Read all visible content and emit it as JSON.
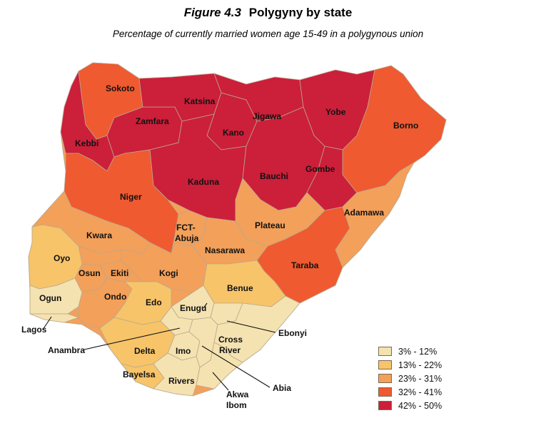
{
  "figure": {
    "number": "Figure 4.3",
    "title": "Polygyny by state",
    "subtitle": "Percentage of currently married women age 15-49 in a polygynous union"
  },
  "legend": [
    {
      "label": "3% - 12%",
      "color": "#f4e2b0"
    },
    {
      "label": "13% - 22%",
      "color": "#f7c46a"
    },
    {
      "label": "23% - 31%",
      "color": "#f3a05a"
    },
    {
      "label": "32% - 41%",
      "color": "#ef5a30"
    },
    {
      "label": "42% - 50%",
      "color": "#cc1f3a"
    }
  ],
  "states": [
    {
      "name": "Sokoto",
      "class": 5
    },
    {
      "name": "Kebbi",
      "class": 5
    },
    {
      "name": "Zamfara",
      "class": 5
    },
    {
      "name": "Katsina",
      "class": 5
    },
    {
      "name": "Kano",
      "class": 5
    },
    {
      "name": "Jigawa",
      "class": 5
    },
    {
      "name": "Yobe",
      "class": 5
    },
    {
      "name": "Borno",
      "class": 4
    },
    {
      "name": "Kaduna",
      "class": 5
    },
    {
      "name": "Bauchi",
      "class": 5
    },
    {
      "name": "Gombe",
      "class": 5
    },
    {
      "name": "Niger",
      "class": 4
    },
    {
      "name": "Adamawa",
      "class": 3
    },
    {
      "name": "Plateau",
      "class": 3
    },
    {
      "name": "FCT-Abuja",
      "class": 3
    },
    {
      "name": "Nasarawa",
      "class": 3
    },
    {
      "name": "Taraba",
      "class": 4
    },
    {
      "name": "Kwara",
      "class": 3
    },
    {
      "name": "Oyo",
      "class": 2
    },
    {
      "name": "Osun",
      "class": 3
    },
    {
      "name": "Ekiti",
      "class": 3
    },
    {
      "name": "Kogi",
      "class": 3
    },
    {
      "name": "Benue",
      "class": 2
    },
    {
      "name": "Ogun",
      "class": 1
    },
    {
      "name": "Ondo",
      "class": 3
    },
    {
      "name": "Edo",
      "class": 2
    },
    {
      "name": "Enugu",
      "class": 1
    },
    {
      "name": "Lagos",
      "class": 1
    },
    {
      "name": "Ebonyi",
      "class": 1
    },
    {
      "name": "Anambra",
      "class": 1
    },
    {
      "name": "Delta",
      "class": 2
    },
    {
      "name": "Imo",
      "class": 1
    },
    {
      "name": "Cross River",
      "class": 1
    },
    {
      "name": "Bayelsa",
      "class": 2
    },
    {
      "name": "Rivers",
      "class": 1
    },
    {
      "name": "Abia",
      "class": 1
    },
    {
      "name": "Akwa Ibom",
      "class": 1
    }
  ],
  "labels": {
    "sokoto": "Sokoto",
    "kebbi": "Kebbi",
    "zamfara": "Zamfara",
    "katsina": "Katsina",
    "kano": "Kano",
    "jigawa": "Jigawa",
    "yobe": "Yobe",
    "borno": "Borno",
    "kaduna": "Kaduna",
    "bauchi": "Bauchi",
    "gombe": "Gombe",
    "niger": "Niger",
    "adamawa": "Adamawa",
    "plateau": "Plateau",
    "fct_line1": "FCT-",
    "fct_line2": "Abuja",
    "nasarawa": "Nasarawa",
    "taraba": "Taraba",
    "kwara": "Kwara",
    "oyo": "Oyo",
    "osun": "Osun",
    "ekiti": "Ekiti",
    "kogi": "Kogi",
    "benue": "Benue",
    "ogun": "Ogun",
    "ondo": "Ondo",
    "edo": "Edo",
    "enugu": "Enugu",
    "lagos": "Lagos",
    "ebonyi": "Ebonyi",
    "anambra": "Anambra",
    "delta": "Delta",
    "imo": "Imo",
    "cross_river_line1": "Cross",
    "cross_river_line2": "River",
    "bayelsa": "Bayelsa",
    "rivers": "Rivers",
    "abia": "Abia",
    "akwa_ibom_line1": "Akwa",
    "akwa_ibom_line2": "Ibom"
  }
}
